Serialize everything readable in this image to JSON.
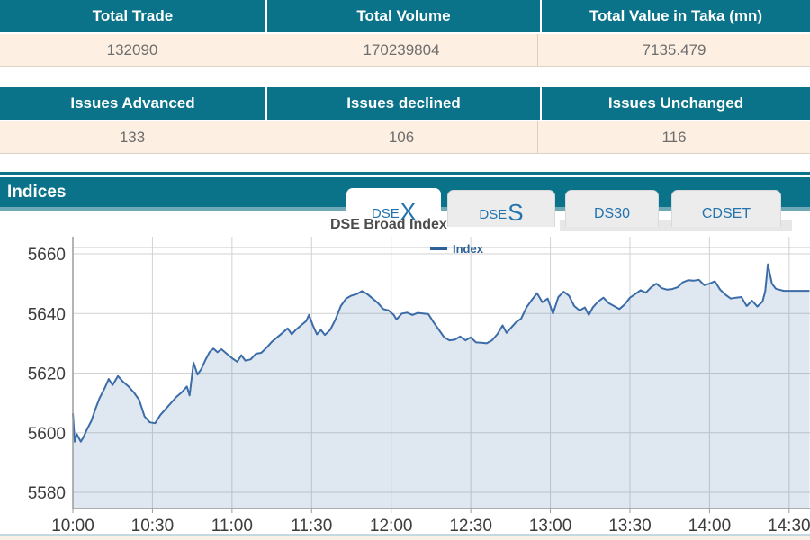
{
  "tables": [
    {
      "headers": [
        "Total Trade",
        "Total Volume",
        "Total Value in Taka (mn)"
      ],
      "values": [
        "132090",
        "170239804",
        "7135.479"
      ]
    },
    {
      "headers": [
        "Issues Advanced",
        "Issues declined",
        "Issues Unchanged"
      ],
      "values": [
        "133",
        "106",
        "116"
      ]
    }
  ],
  "indices_bar": {
    "title": "Indices"
  },
  "tabs": [
    {
      "prefix": "DSE",
      "suffix": "X",
      "active": true
    },
    {
      "prefix": "DSE",
      "suffix": "S",
      "active": false
    },
    {
      "prefix": "DS30",
      "suffix": "",
      "active": false
    },
    {
      "prefix": "CDSET",
      "suffix": "",
      "active": false
    }
  ],
  "theme": {
    "teal": "#0b7389",
    "cream_row": "#fdf0e3",
    "tab_text_blue": "#2273ae",
    "chart_line": "#3b6ca8",
    "chart_fill": "rgba(59,108,168,0.16)",
    "legend_blue": "#2e6195"
  },
  "chart_data": {
    "type": "area",
    "title": "DSE Broad Index",
    "legend": [
      {
        "label": "Index",
        "color": "#2e6195"
      }
    ],
    "x_start": "10:00",
    "x_ticks": [
      "10:00",
      "10:30",
      "11:00",
      "11:30",
      "12:00",
      "12:30",
      "13:00",
      "13:30",
      "14:00",
      "14:30"
    ],
    "y_ticks": [
      5580,
      5600,
      5620,
      5640,
      5660
    ],
    "ylim": [
      5574,
      5663
    ],
    "grid": true,
    "legend_position": "top-center",
    "series": [
      {
        "name": "Index",
        "points": [
          [
            0,
            5606.5
          ],
          [
            0.7,
            5597
          ],
          [
            1.5,
            5599.5
          ],
          [
            3,
            5597
          ],
          [
            4,
            5598.5
          ],
          [
            5,
            5600.5
          ],
          [
            7,
            5604
          ],
          [
            8.5,
            5608
          ],
          [
            10,
            5611.5
          ],
          [
            12,
            5615
          ],
          [
            13.5,
            5618
          ],
          [
            15,
            5616
          ],
          [
            17,
            5619
          ],
          [
            19,
            5617
          ],
          [
            21,
            5615.5
          ],
          [
            23,
            5613.5
          ],
          [
            25,
            5611
          ],
          [
            27,
            5605.5
          ],
          [
            29,
            5603.5
          ],
          [
            31,
            5603.2
          ],
          [
            33,
            5606
          ],
          [
            35,
            5608
          ],
          [
            37,
            5610
          ],
          [
            39,
            5612
          ],
          [
            41,
            5613.5
          ],
          [
            43,
            5615.5
          ],
          [
            44,
            5612.5
          ],
          [
            45.5,
            5623.5
          ],
          [
            47,
            5619.5
          ],
          [
            48.5,
            5621.5
          ],
          [
            50,
            5624.5
          ],
          [
            51.5,
            5627
          ],
          [
            53,
            5628.2
          ],
          [
            54.5,
            5627
          ],
          [
            56,
            5628
          ],
          [
            58,
            5626.5
          ],
          [
            60,
            5625
          ],
          [
            62,
            5623.8
          ],
          [
            63.5,
            5626
          ],
          [
            65,
            5624.2
          ],
          [
            67,
            5624.6
          ],
          [
            69,
            5626.5
          ],
          [
            71,
            5626.8
          ],
          [
            73,
            5628.5
          ],
          [
            75,
            5630.5
          ],
          [
            77,
            5632
          ],
          [
            79,
            5633.5
          ],
          [
            81,
            5635
          ],
          [
            82.5,
            5633
          ],
          [
            84,
            5634.5
          ],
          [
            86,
            5636
          ],
          [
            88,
            5637.5
          ],
          [
            89,
            5639.5
          ],
          [
            90.5,
            5636
          ],
          [
            92,
            5633
          ],
          [
            93.5,
            5634.5
          ],
          [
            95,
            5632.8
          ],
          [
            97,
            5634.5
          ],
          [
            99,
            5638
          ],
          [
            101,
            5642.5
          ],
          [
            103,
            5645
          ],
          [
            105,
            5646
          ],
          [
            107,
            5646.5
          ],
          [
            109,
            5647.5
          ],
          [
            111,
            5646.5
          ],
          [
            113,
            5645
          ],
          [
            115,
            5643.5
          ],
          [
            117,
            5641.5
          ],
          [
            119,
            5641
          ],
          [
            121,
            5639.5
          ],
          [
            122,
            5638
          ],
          [
            124,
            5640
          ],
          [
            126,
            5640.3
          ],
          [
            128,
            5639.5
          ],
          [
            130,
            5640.2
          ],
          [
            132,
            5640
          ],
          [
            134,
            5639.8
          ],
          [
            136,
            5637
          ],
          [
            138,
            5634.5
          ],
          [
            140,
            5632
          ],
          [
            142,
            5631
          ],
          [
            144,
            5631.2
          ],
          [
            146,
            5632.3
          ],
          [
            148,
            5631
          ],
          [
            150,
            5632
          ],
          [
            152,
            5630.3
          ],
          [
            154,
            5630.2
          ],
          [
            156,
            5630
          ],
          [
            158,
            5631
          ],
          [
            160,
            5633
          ],
          [
            162,
            5636
          ],
          [
            163.5,
            5633.5
          ],
          [
            165,
            5635
          ],
          [
            167,
            5637
          ],
          [
            169,
            5638.3
          ],
          [
            171,
            5642
          ],
          [
            173,
            5644.5
          ],
          [
            175,
            5646.8
          ],
          [
            177,
            5643.8
          ],
          [
            179,
            5645
          ],
          [
            181,
            5640
          ],
          [
            183,
            5645.5
          ],
          [
            185,
            5647.3
          ],
          [
            187,
            5646
          ],
          [
            189,
            5642.5
          ],
          [
            191,
            5641
          ],
          [
            193,
            5642
          ],
          [
            194.5,
            5639.5
          ],
          [
            196,
            5642
          ],
          [
            198,
            5644
          ],
          [
            200,
            5645.3
          ],
          [
            202,
            5643.5
          ],
          [
            204,
            5642.5
          ],
          [
            206,
            5641.5
          ],
          [
            208,
            5643
          ],
          [
            210,
            5645.3
          ],
          [
            212,
            5646.5
          ],
          [
            214,
            5647.8
          ],
          [
            216,
            5647
          ],
          [
            218,
            5648.8
          ],
          [
            220,
            5650
          ],
          [
            222,
            5648.5
          ],
          [
            224,
            5648
          ],
          [
            226,
            5648.2
          ],
          [
            228,
            5648.8
          ],
          [
            230,
            5650.5
          ],
          [
            232,
            5651.2
          ],
          [
            234,
            5651
          ],
          [
            236,
            5651.3
          ],
          [
            238,
            5649.5
          ],
          [
            240,
            5650
          ],
          [
            242,
            5650.8
          ],
          [
            244,
            5648
          ],
          [
            246,
            5646.3
          ],
          [
            248,
            5645
          ],
          [
            250,
            5645.3
          ],
          [
            252,
            5645.5
          ],
          [
            254,
            5642.5
          ],
          [
            256,
            5644.3
          ],
          [
            258,
            5642.3
          ],
          [
            260,
            5644
          ],
          [
            261,
            5647.5
          ],
          [
            262,
            5656.5
          ],
          [
            263.5,
            5650
          ],
          [
            265,
            5648.3
          ],
          [
            268,
            5647.6
          ],
          [
            272,
            5647.6
          ],
          [
            278,
            5647.6
          ]
        ]
      }
    ]
  }
}
